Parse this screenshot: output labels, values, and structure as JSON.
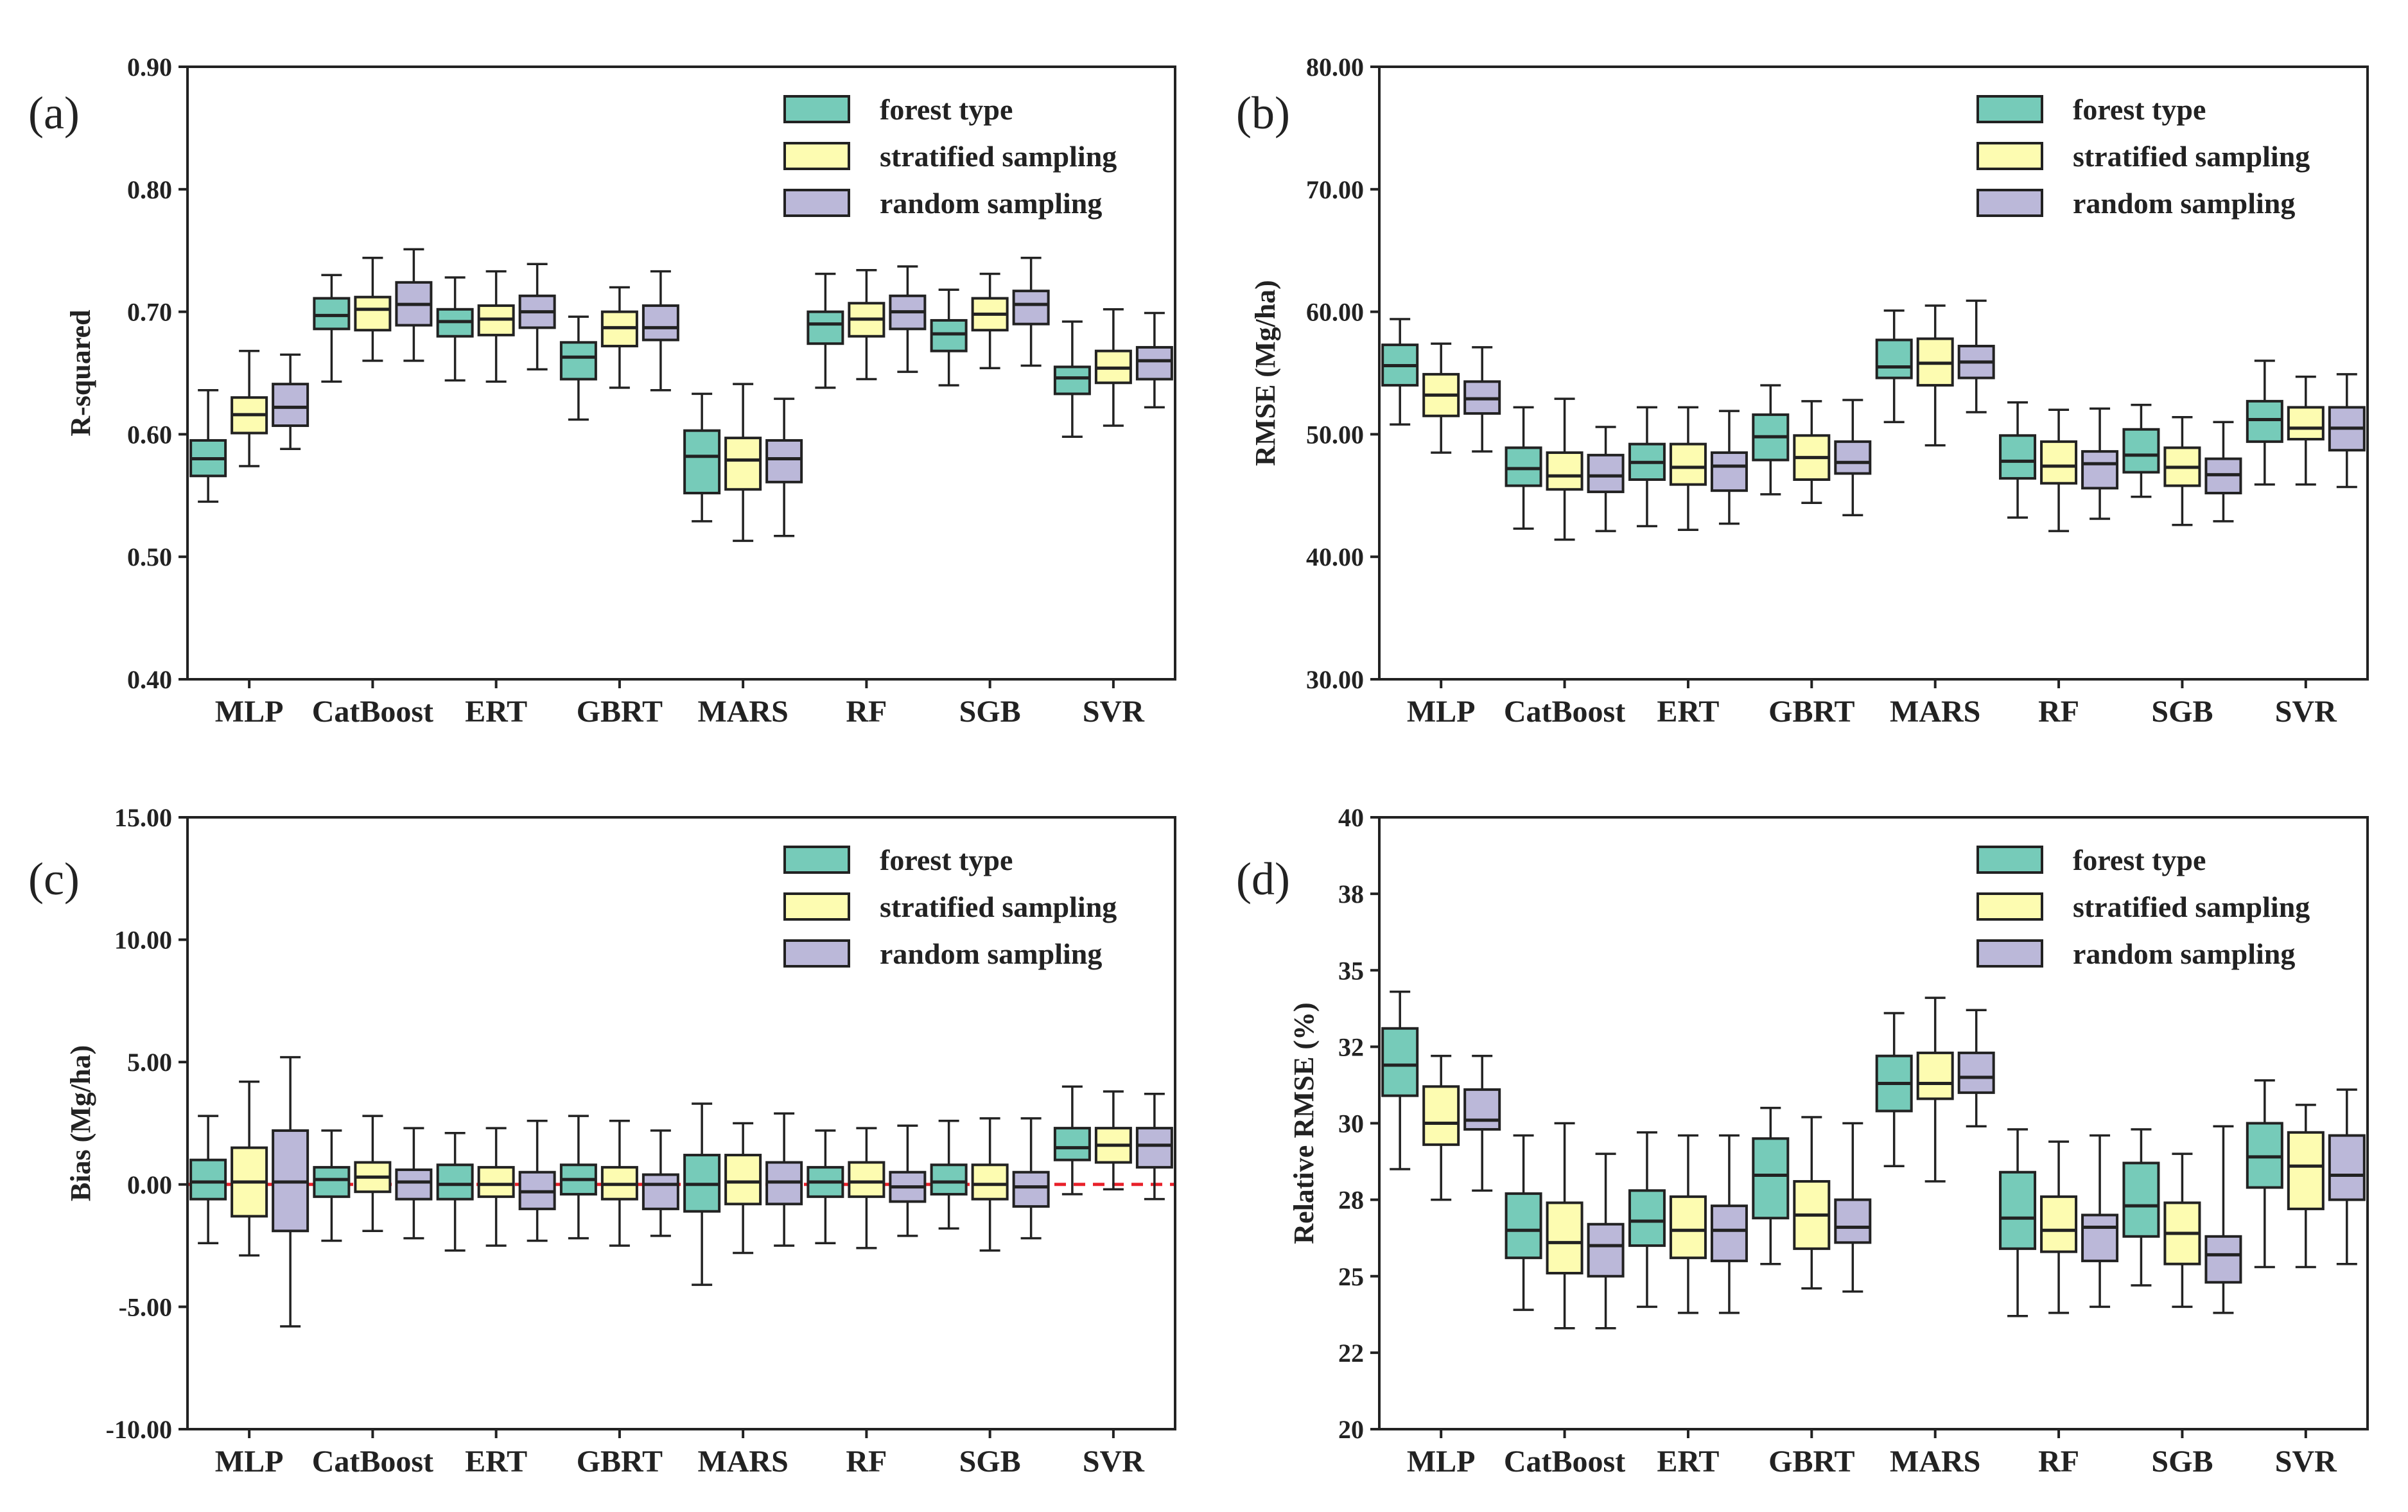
{
  "chart_data": [
    {
      "type": "boxplot",
      "panel_label": "(a)",
      "ylabel": "R-squared",
      "ylim": [
        0.4,
        0.9
      ],
      "yticks": [
        0.4,
        0.5,
        0.6,
        0.7,
        0.8,
        0.9
      ],
      "ytick_labels": [
        "0.40",
        "0.50",
        "0.60",
        "0.70",
        "0.80",
        "0.90"
      ],
      "categories": [
        "MLP",
        "CatBoost",
        "ERT",
        "GBRT",
        "MARS",
        "RF",
        "SGB",
        "SVR"
      ],
      "reference_line": null,
      "legend": [
        "forest type",
        "stratified sampling",
        "random sampling"
      ],
      "series": [
        {
          "name": "forest type",
          "color": "#76cbb9",
          "boxes": [
            [
              0.545,
              0.566,
              0.58,
              0.595,
              0.636
            ],
            [
              0.643,
              0.686,
              0.697,
              0.711,
              0.73
            ],
            [
              0.644,
              0.68,
              0.692,
              0.702,
              0.728
            ],
            [
              0.612,
              0.645,
              0.663,
              0.675,
              0.696
            ],
            [
              0.529,
              0.552,
              0.582,
              0.603,
              0.633
            ],
            [
              0.638,
              0.674,
              0.69,
              0.7,
              0.731
            ],
            [
              0.64,
              0.668,
              0.682,
              0.693,
              0.718
            ],
            [
              0.598,
              0.633,
              0.646,
              0.655,
              0.692
            ]
          ]
        },
        {
          "name": "stratified sampling",
          "color": "#fdfcb1",
          "boxes": [
            [
              0.574,
              0.601,
              0.616,
              0.63,
              0.668
            ],
            [
              0.66,
              0.685,
              0.702,
              0.712,
              0.744
            ],
            [
              0.643,
              0.681,
              0.694,
              0.705,
              0.733
            ],
            [
              0.638,
              0.672,
              0.687,
              0.7,
              0.72
            ],
            [
              0.513,
              0.555,
              0.579,
              0.597,
              0.641
            ],
            [
              0.645,
              0.68,
              0.694,
              0.707,
              0.734
            ],
            [
              0.654,
              0.685,
              0.698,
              0.711,
              0.731
            ],
            [
              0.607,
              0.642,
              0.654,
              0.668,
              0.702
            ]
          ]
        },
        {
          "name": "random sampling",
          "color": "#bbb8d9",
          "boxes": [
            [
              0.588,
              0.607,
              0.622,
              0.641,
              0.665
            ],
            [
              0.66,
              0.689,
              0.706,
              0.724,
              0.751
            ],
            [
              0.653,
              0.687,
              0.7,
              0.713,
              0.739
            ],
            [
              0.636,
              0.677,
              0.687,
              0.705,
              0.733
            ],
            [
              0.517,
              0.561,
              0.58,
              0.595,
              0.629
            ],
            [
              0.651,
              0.686,
              0.7,
              0.713,
              0.737
            ],
            [
              0.656,
              0.69,
              0.706,
              0.717,
              0.744
            ],
            [
              0.622,
              0.645,
              0.66,
              0.671,
              0.699
            ]
          ]
        }
      ]
    },
    {
      "type": "boxplot",
      "panel_label": "(b)",
      "ylabel": "RMSE (Mg/ha)",
      "ylim": [
        30.0,
        80.0
      ],
      "yticks": [
        30,
        40,
        50,
        60,
        70,
        80
      ],
      "ytick_labels": [
        "30.00",
        "40.00",
        "50.00",
        "60.00",
        "70.00",
        "80.00"
      ],
      "categories": [
        "MLP",
        "CatBoost",
        "ERT",
        "GBRT",
        "MARS",
        "RF",
        "SGB",
        "SVR"
      ],
      "reference_line": null,
      "legend": [
        "forest type",
        "stratified sampling",
        "random sampling"
      ],
      "series": [
        {
          "name": "forest type",
          "color": "#76cbb9",
          "boxes": [
            [
              50.8,
              54.0,
              55.6,
              57.3,
              59.4
            ],
            [
              42.3,
              45.8,
              47.2,
              48.9,
              52.2
            ],
            [
              42.5,
              46.3,
              47.7,
              49.2,
              52.2
            ],
            [
              45.1,
              47.9,
              49.8,
              51.6,
              54.0
            ],
            [
              51.0,
              54.6,
              55.5,
              57.7,
              60.1
            ],
            [
              43.2,
              46.4,
              47.8,
              49.9,
              52.6
            ],
            [
              44.9,
              46.9,
              48.3,
              50.4,
              52.4
            ],
            [
              45.9,
              49.4,
              51.2,
              52.7,
              56.0
            ]
          ]
        },
        {
          "name": "stratified sampling",
          "color": "#fdfcb1",
          "boxes": [
            [
              48.5,
              51.5,
              53.2,
              54.9,
              57.4
            ],
            [
              41.4,
              45.5,
              46.6,
              48.5,
              52.9
            ],
            [
              42.2,
              45.9,
              47.3,
              49.2,
              52.2
            ],
            [
              44.4,
              46.3,
              48.1,
              49.9,
              52.7
            ],
            [
              49.1,
              54.0,
              55.8,
              57.8,
              60.5
            ],
            [
              42.1,
              46.0,
              47.4,
              49.4,
              52.0
            ],
            [
              42.6,
              45.8,
              47.3,
              48.9,
              51.4
            ],
            [
              45.9,
              49.6,
              50.5,
              52.2,
              54.7
            ]
          ]
        },
        {
          "name": "random sampling",
          "color": "#bbb8d9",
          "boxes": [
            [
              48.6,
              51.7,
              52.9,
              54.3,
              57.1
            ],
            [
              42.1,
              45.3,
              46.6,
              48.3,
              50.6
            ],
            [
              42.7,
              45.4,
              47.4,
              48.5,
              51.9
            ],
            [
              43.4,
              46.8,
              47.7,
              49.4,
              52.8
            ],
            [
              51.8,
              54.6,
              55.9,
              57.2,
              60.9
            ],
            [
              43.1,
              45.6,
              47.6,
              48.6,
              52.1
            ],
            [
              42.9,
              45.2,
              46.7,
              48.0,
              51.0
            ],
            [
              45.7,
              48.7,
              50.5,
              52.2,
              54.9
            ]
          ]
        }
      ]
    },
    {
      "type": "boxplot",
      "panel_label": "(c)",
      "ylabel": "Bias (Mg/ha)",
      "ylim": [
        -10.0,
        15.0
      ],
      "yticks": [
        -10,
        -5,
        0,
        5,
        10,
        15
      ],
      "ytick_labels": [
        "-10.00",
        "-5.00",
        "0.00",
        "5.00",
        "10.00",
        "15.00"
      ],
      "categories": [
        "MLP",
        "CatBoost",
        "ERT",
        "GBRT",
        "MARS",
        "RF",
        "SGB",
        "SVR"
      ],
      "reference_line": {
        "y": 0,
        "color": "#e8212a",
        "style": "dashed"
      },
      "legend": [
        "forest type",
        "stratified sampling",
        "random sampling"
      ],
      "series": [
        {
          "name": "forest type",
          "color": "#76cbb9",
          "boxes": [
            [
              -2.4,
              -0.6,
              0.1,
              1.0,
              2.8
            ],
            [
              -2.3,
              -0.5,
              0.2,
              0.7,
              2.2
            ],
            [
              -2.7,
              -0.6,
              0.0,
              0.8,
              2.1
            ],
            [
              -2.2,
              -0.4,
              0.2,
              0.8,
              2.8
            ],
            [
              -4.1,
              -1.1,
              0.0,
              1.2,
              3.3
            ],
            [
              -2.4,
              -0.5,
              0.1,
              0.7,
              2.2
            ],
            [
              -1.8,
              -0.4,
              0.1,
              0.8,
              2.6
            ],
            [
              -0.4,
              1.0,
              1.5,
              2.3,
              4.0
            ]
          ]
        },
        {
          "name": "stratified sampling",
          "color": "#fdfcb1",
          "boxes": [
            [
              -2.9,
              -1.3,
              0.1,
              1.5,
              4.2
            ],
            [
              -1.9,
              -0.3,
              0.3,
              0.9,
              2.8
            ],
            [
              -2.5,
              -0.5,
              0.0,
              0.7,
              2.3
            ],
            [
              -2.5,
              -0.6,
              0.0,
              0.7,
              2.6
            ],
            [
              -2.8,
              -0.8,
              0.1,
              1.2,
              2.5
            ],
            [
              -2.6,
              -0.5,
              0.1,
              0.9,
              2.3
            ],
            [
              -2.7,
              -0.6,
              0.0,
              0.8,
              2.7
            ],
            [
              -0.2,
              0.9,
              1.6,
              2.3,
              3.8
            ]
          ]
        },
        {
          "name": "random sampling",
          "color": "#bbb8d9",
          "boxes": [
            [
              -5.8,
              -1.9,
              0.1,
              2.2,
              5.2
            ],
            [
              -2.2,
              -0.6,
              0.1,
              0.6,
              2.3
            ],
            [
              -2.3,
              -1.0,
              -0.3,
              0.5,
              2.6
            ],
            [
              -2.1,
              -1.0,
              0.0,
              0.4,
              2.2
            ],
            [
              -2.5,
              -0.8,
              0.1,
              0.9,
              2.9
            ],
            [
              -2.1,
              -0.7,
              -0.1,
              0.5,
              2.4
            ],
            [
              -2.2,
              -0.9,
              -0.1,
              0.5,
              2.7
            ],
            [
              -0.6,
              0.7,
              1.6,
              2.3,
              3.7
            ]
          ]
        }
      ]
    },
    {
      "type": "boxplot",
      "panel_label": "(d)",
      "ylabel": "Relative RMSE (%)",
      "ylim": [
        20,
        40
      ],
      "yticks": [
        20,
        22.5,
        25,
        27.5,
        30,
        32.5,
        35,
        37.5,
        40
      ],
      "ytick_labels": [
        "20",
        "22",
        "25",
        "28",
        "30",
        "32",
        "35",
        "38",
        "40"
      ],
      "categories": [
        "MLP",
        "CatBoost",
        "ERT",
        "GBRT",
        "MARS",
        "RF",
        "SGB",
        "SVR"
      ],
      "reference_line": null,
      "legend": [
        "forest type",
        "stratified sampling",
        "random sampling"
      ],
      "series": [
        {
          "name": "forest type",
          "color": "#76cbb9",
          "boxes": [
            [
              28.5,
              30.9,
              31.9,
              33.1,
              34.3
            ],
            [
              23.9,
              25.6,
              26.5,
              27.7,
              29.6
            ],
            [
              24.0,
              26.0,
              26.8,
              27.8,
              29.7
            ],
            [
              25.4,
              26.9,
              28.3,
              29.5,
              30.5
            ],
            [
              28.6,
              30.4,
              31.3,
              32.2,
              33.6
            ],
            [
              23.7,
              25.9,
              26.9,
              28.4,
              29.8
            ],
            [
              24.7,
              26.3,
              27.3,
              28.7,
              29.8
            ],
            [
              25.3,
              27.9,
              28.9,
              30.0,
              31.4
            ]
          ]
        },
        {
          "name": "stratified sampling",
          "color": "#fdfcb1",
          "boxes": [
            [
              27.5,
              29.3,
              30.0,
              31.2,
              32.2
            ],
            [
              23.3,
              25.1,
              26.1,
              27.4,
              30.0
            ],
            [
              23.8,
              25.6,
              26.5,
              27.6,
              29.6
            ],
            [
              24.6,
              25.9,
              27.0,
              28.1,
              30.2
            ],
            [
              28.1,
              30.8,
              31.3,
              32.3,
              34.1
            ],
            [
              23.8,
              25.8,
              26.5,
              27.6,
              29.4
            ],
            [
              24.0,
              25.4,
              26.4,
              27.4,
              29.0
            ],
            [
              25.3,
              27.2,
              28.6,
              29.7,
              30.6
            ]
          ]
        },
        {
          "name": "random sampling",
          "color": "#bbb8d9",
          "boxes": [
            [
              27.8,
              29.8,
              30.1,
              31.1,
              32.2
            ],
            [
              23.3,
              25.0,
              26.0,
              26.7,
              29.0
            ],
            [
              23.8,
              25.5,
              26.5,
              27.3,
              29.6
            ],
            [
              24.5,
              26.1,
              26.6,
              27.5,
              30.0
            ],
            [
              29.9,
              31.0,
              31.5,
              32.3,
              33.7
            ],
            [
              24.0,
              25.5,
              26.6,
              27.0,
              29.6
            ],
            [
              23.8,
              24.8,
              25.7,
              26.3,
              29.9
            ],
            [
              25.4,
              27.5,
              28.3,
              29.6,
              31.1
            ]
          ]
        }
      ]
    }
  ]
}
